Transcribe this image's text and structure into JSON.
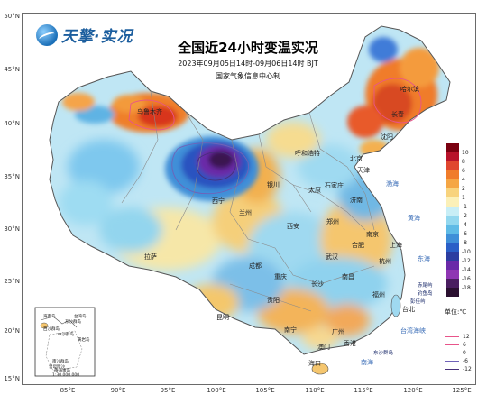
{
  "logo": {
    "text": "天擎·实况"
  },
  "title": "全国近24小时变温实况",
  "subtitle": "2023年09月05日14时-09月06日14时  BJT",
  "producer": "国家气象信息中心制",
  "lat_ticks": [
    "50°N",
    "45°N",
    "40°N",
    "35°N",
    "30°N",
    "25°N",
    "20°N",
    "15°N"
  ],
  "lon_ticks": [
    "85°E",
    "90°E",
    "95°E",
    "100°E",
    "105°E",
    "110°E",
    "115°E",
    "120°E",
    "125°E"
  ],
  "legend": {
    "colors": [
      "#7a0010",
      "#b8122a",
      "#e0462f",
      "#f07c2a",
      "#f5a644",
      "#f8d37d",
      "#fbf0b8",
      "#c8eef6",
      "#93d8ef",
      "#5fbbe6",
      "#3f8fd8",
      "#2a5fc7",
      "#2c3da0",
      "#6a2aa8",
      "#8f36b3",
      "#4a1e60",
      "#2a1030"
    ],
    "labels": [
      "10",
      "8",
      "6",
      "4",
      "2",
      "1",
      "-1",
      "-2",
      "-4",
      "-6",
      "-8",
      "-10",
      "-12",
      "-14",
      "-16",
      "-18"
    ],
    "unit": "单位:℃"
  },
  "isoline_legend": [
    {
      "value": "12",
      "color": "#e8548a"
    },
    {
      "value": "6",
      "color": "#e8548a"
    },
    {
      "value": "0",
      "color": "#c8b5e8"
    },
    {
      "value": "-6",
      "color": "#6f62b8"
    },
    {
      "value": "-12",
      "color": "#47307a"
    }
  ],
  "inset": {
    "labels": [
      "海南岛",
      "台湾岛",
      "南海诸岛",
      "东沙群岛",
      "西沙群岛",
      "南沙群岛",
      "中沙群岛",
      "黄岩岛",
      "曾母暗沙"
    ],
    "scale": "1:30 000 000"
  },
  "cities": [
    "哈尔滨",
    "长春",
    "沈阳",
    "呼和浩特",
    "北京",
    "天津",
    "石家庄",
    "太原",
    "济南",
    "银川",
    "兰州",
    "西宁",
    "西安",
    "郑州",
    "南京",
    "合肥",
    "上海",
    "杭州",
    "成都",
    "重庆",
    "武汉",
    "长沙",
    "南昌",
    "福州",
    "台北",
    "贵阳",
    "昆明",
    "南宁",
    "广州",
    "香港",
    "澳门",
    "海口",
    "拉萨",
    "乌鲁木齐"
  ],
  "islands": [
    "赤尾屿",
    "钓鱼岛",
    "彭佳屿",
    "东沙群岛"
  ],
  "water": [
    "渤海",
    "黄海",
    "东海",
    "南海",
    "台湾海峡"
  ]
}
